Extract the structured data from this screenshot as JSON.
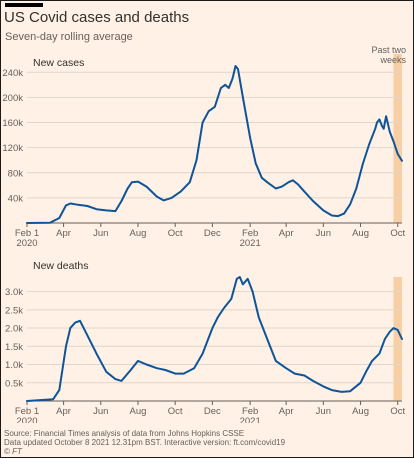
{
  "header": {
    "title": "US Covid cases and deaths",
    "subtitle": "Seven-day rolling average"
  },
  "footer": {
    "source": "Source: Financial Times analysis of data from Johns Hopkins CSSE",
    "updated": "Data updated October 8 2021 12.31pm BST. Interactive version: ft.com/covid19",
    "copyright": "© FT"
  },
  "colors": {
    "background": "#fff1e5",
    "line": "#0f5499",
    "shade": "#f8cfa5",
    "grid": "#e0d6cc"
  },
  "chart_data": [
    {
      "type": "line",
      "title": "New cases",
      "annotation": {
        "label_line1": "Past two",
        "label_line2": "weeks",
        "from": "2021-09-24",
        "to": "2021-10-08"
      },
      "ylim": [
        0,
        250000
      ],
      "y_ticks": [
        40000,
        80000,
        120000,
        160000,
        200000,
        240000
      ],
      "y_tick_labels": [
        "40k",
        "80k",
        "120k",
        "160k",
        "200k",
        "240k"
      ],
      "x_tick_labels": [
        "Feb 1",
        "Apr",
        "Jun",
        "Aug",
        "Oct",
        "Dec",
        "Feb",
        "Apr",
        "Jun",
        "Aug",
        "Oct"
      ],
      "x_year_labels": [
        "2020",
        "2021"
      ],
      "series": [
        {
          "x": [
            "2020-02-01",
            "2020-03-10",
            "2020-03-25",
            "2020-04-05",
            "2020-04-12",
            "2020-04-25",
            "2020-05-10",
            "2020-05-25",
            "2020-06-10",
            "2020-06-25",
            "2020-07-05",
            "2020-07-15",
            "2020-07-22",
            "2020-08-01",
            "2020-08-15",
            "2020-09-01",
            "2020-09-12",
            "2020-09-25",
            "2020-10-10",
            "2020-10-25",
            "2020-11-05",
            "2020-11-15",
            "2020-11-25",
            "2020-12-05",
            "2020-12-15",
            "2020-12-22",
            "2020-12-28",
            "2021-01-03",
            "2021-01-08",
            "2021-01-12",
            "2021-01-20",
            "2021-02-01",
            "2021-02-10",
            "2021-02-20",
            "2021-03-01",
            "2021-03-15",
            "2021-03-25",
            "2021-04-05",
            "2021-04-12",
            "2021-04-20",
            "2021-05-01",
            "2021-05-15",
            "2021-06-01",
            "2021-06-15",
            "2021-06-25",
            "2021-07-05",
            "2021-07-15",
            "2021-07-25",
            "2021-08-05",
            "2021-08-15",
            "2021-08-25",
            "2021-08-28",
            "2021-09-01",
            "2021-09-05",
            "2021-09-08",
            "2021-09-12",
            "2021-09-18",
            "2021-09-24",
            "2021-10-01",
            "2021-10-08"
          ],
          "y": [
            0,
            500,
            8000,
            28000,
            31000,
            29000,
            27000,
            22000,
            20000,
            19000,
            35000,
            55000,
            65000,
            66000,
            58000,
            42000,
            36000,
            40000,
            50000,
            65000,
            100000,
            160000,
            178000,
            185000,
            215000,
            220000,
            215000,
            230000,
            250000,
            245000,
            200000,
            135000,
            95000,
            72000,
            65000,
            55000,
            58000,
            65000,
            68000,
            62000,
            50000,
            35000,
            20000,
            12000,
            11000,
            15000,
            30000,
            55000,
            95000,
            125000,
            150000,
            160000,
            165000,
            155000,
            150000,
            170000,
            145000,
            130000,
            110000,
            99000
          ]
        }
      ]
    },
    {
      "type": "line",
      "title": "New deaths",
      "ylim": [
        0,
        3400
      ],
      "y_ticks": [
        500,
        1000,
        1500,
        2000,
        2500,
        3000
      ],
      "y_tick_labels": [
        "0.5k",
        "1.0k",
        "1.5k",
        "2.0k",
        "2.5k",
        "3.0k"
      ],
      "x_tick_labels": [
        "Feb 1",
        "Apr",
        "Jun",
        "Aug",
        "Oct",
        "Dec",
        "Feb",
        "Apr",
        "Jun",
        "Aug",
        "Oct"
      ],
      "x_year_labels": [
        "2020",
        "2021"
      ],
      "series": [
        {
          "x": [
            "2020-02-01",
            "2020-03-15",
            "2020-03-25",
            "2020-04-05",
            "2020-04-12",
            "2020-04-20",
            "2020-04-28",
            "2020-05-10",
            "2020-05-25",
            "2020-06-10",
            "2020-06-25",
            "2020-07-05",
            "2020-07-20",
            "2020-08-01",
            "2020-08-15",
            "2020-09-01",
            "2020-09-15",
            "2020-10-01",
            "2020-10-15",
            "2020-11-01",
            "2020-11-15",
            "2020-12-01",
            "2020-12-10",
            "2020-12-20",
            "2021-01-01",
            "2021-01-10",
            "2021-01-15",
            "2021-01-20",
            "2021-01-28",
            "2021-02-05",
            "2021-02-15",
            "2021-03-01",
            "2021-03-15",
            "2021-04-01",
            "2021-04-15",
            "2021-05-01",
            "2021-05-15",
            "2021-06-01",
            "2021-06-15",
            "2021-07-01",
            "2021-07-15",
            "2021-08-01",
            "2021-08-10",
            "2021-08-20",
            "2021-09-01",
            "2021-09-10",
            "2021-09-18",
            "2021-09-24",
            "2021-10-01",
            "2021-10-08"
          ],
          "y": [
            0,
            50,
            300,
            1500,
            2000,
            2150,
            2200,
            1800,
            1300,
            800,
            600,
            550,
            850,
            1100,
            1000,
            900,
            850,
            750,
            750,
            900,
            1300,
            2000,
            2300,
            2550,
            2800,
            3350,
            3400,
            3200,
            3350,
            3000,
            2300,
            1700,
            1100,
            900,
            750,
            700,
            550,
            400,
            300,
            250,
            270,
            500,
            800,
            1100,
            1300,
            1700,
            1900,
            2000,
            1950,
            1700
          ]
        }
      ]
    }
  ]
}
